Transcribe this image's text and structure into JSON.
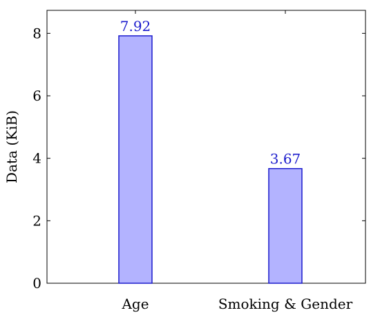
{
  "chart_data": {
    "type": "bar",
    "categories": [
      "Age",
      "Smoking & Gender"
    ],
    "values": [
      7.92,
      3.67
    ],
    "data_labels": [
      "7.92",
      "3.67"
    ],
    "title": "",
    "xlabel": "",
    "ylabel": "Data (KiB)",
    "ylim": [
      0,
      8.75
    ],
    "yticks": [
      0,
      2,
      4,
      6,
      8
    ],
    "grid": false,
    "legend": "none",
    "colors": {
      "bar_fill": "#b3b3ff",
      "bar_stroke": "#1a1acc",
      "label": "#1a1acc",
      "axis": "#000000"
    }
  }
}
